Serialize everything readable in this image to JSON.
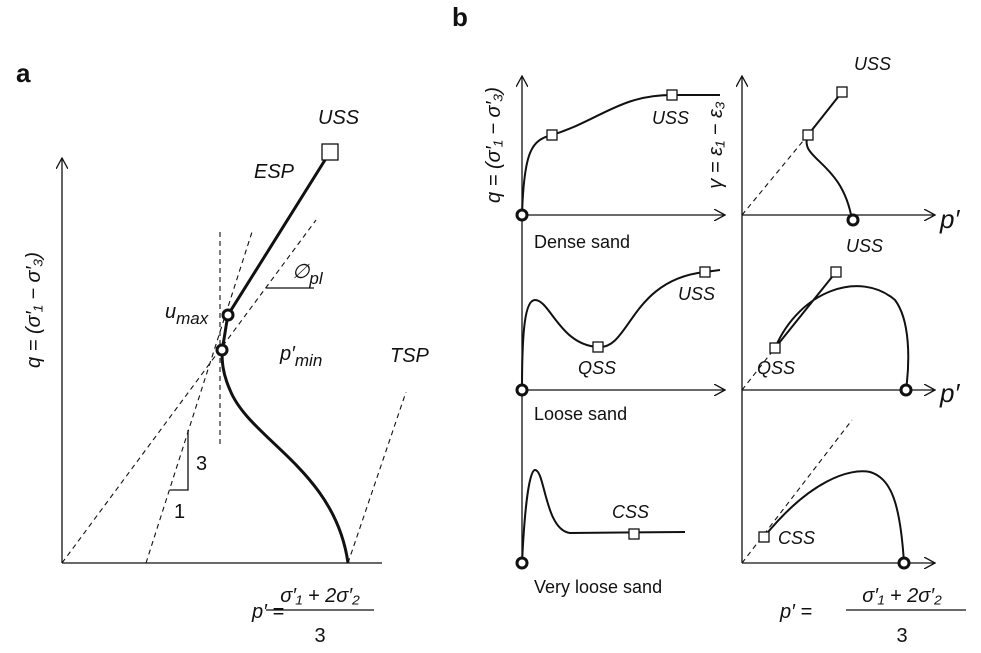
{
  "panel_a": {
    "label": "a",
    "y_axis_label": "q = (σ′₁ − σ′₃)",
    "x_axis_label": {
      "lhs": "p′ =",
      "numerator": "σ′₁ + 2σ′₂",
      "denominator": "3"
    },
    "annotations": {
      "uss": "USS",
      "esp": "ESP",
      "tsp": "TSP",
      "u_max": {
        "text": "u",
        "sub": "max"
      },
      "p_min": {
        "text": "p′",
        "sub": "min"
      },
      "phi_pl": {
        "text": "∅",
        "sub": "pl"
      },
      "slope_rise": "3",
      "slope_run": "1"
    }
  },
  "panel_b": {
    "label": "b",
    "y_axis_label_left": "q = (σ′₁ − σ′₃)",
    "y_axis_label_right": "γ = ε₁ − ε₃",
    "x_axis_label_right": "p′",
    "x_axis_label": {
      "lhs": "p′ =",
      "numerator": "σ′₁ + 2σ′₂",
      "denominator": "3"
    },
    "rows": [
      {
        "name": "Dense sand",
        "left_states": [
          "USS"
        ],
        "right_states": [
          "USS"
        ]
      },
      {
        "name": "Loose sand",
        "left_states": [
          "USS",
          "QSS"
        ],
        "right_states": [
          "USS",
          "QSS"
        ]
      },
      {
        "name": "Very loose sand",
        "left_states": [
          "CSS"
        ],
        "right_states": [
          "CSS"
        ]
      }
    ]
  }
}
